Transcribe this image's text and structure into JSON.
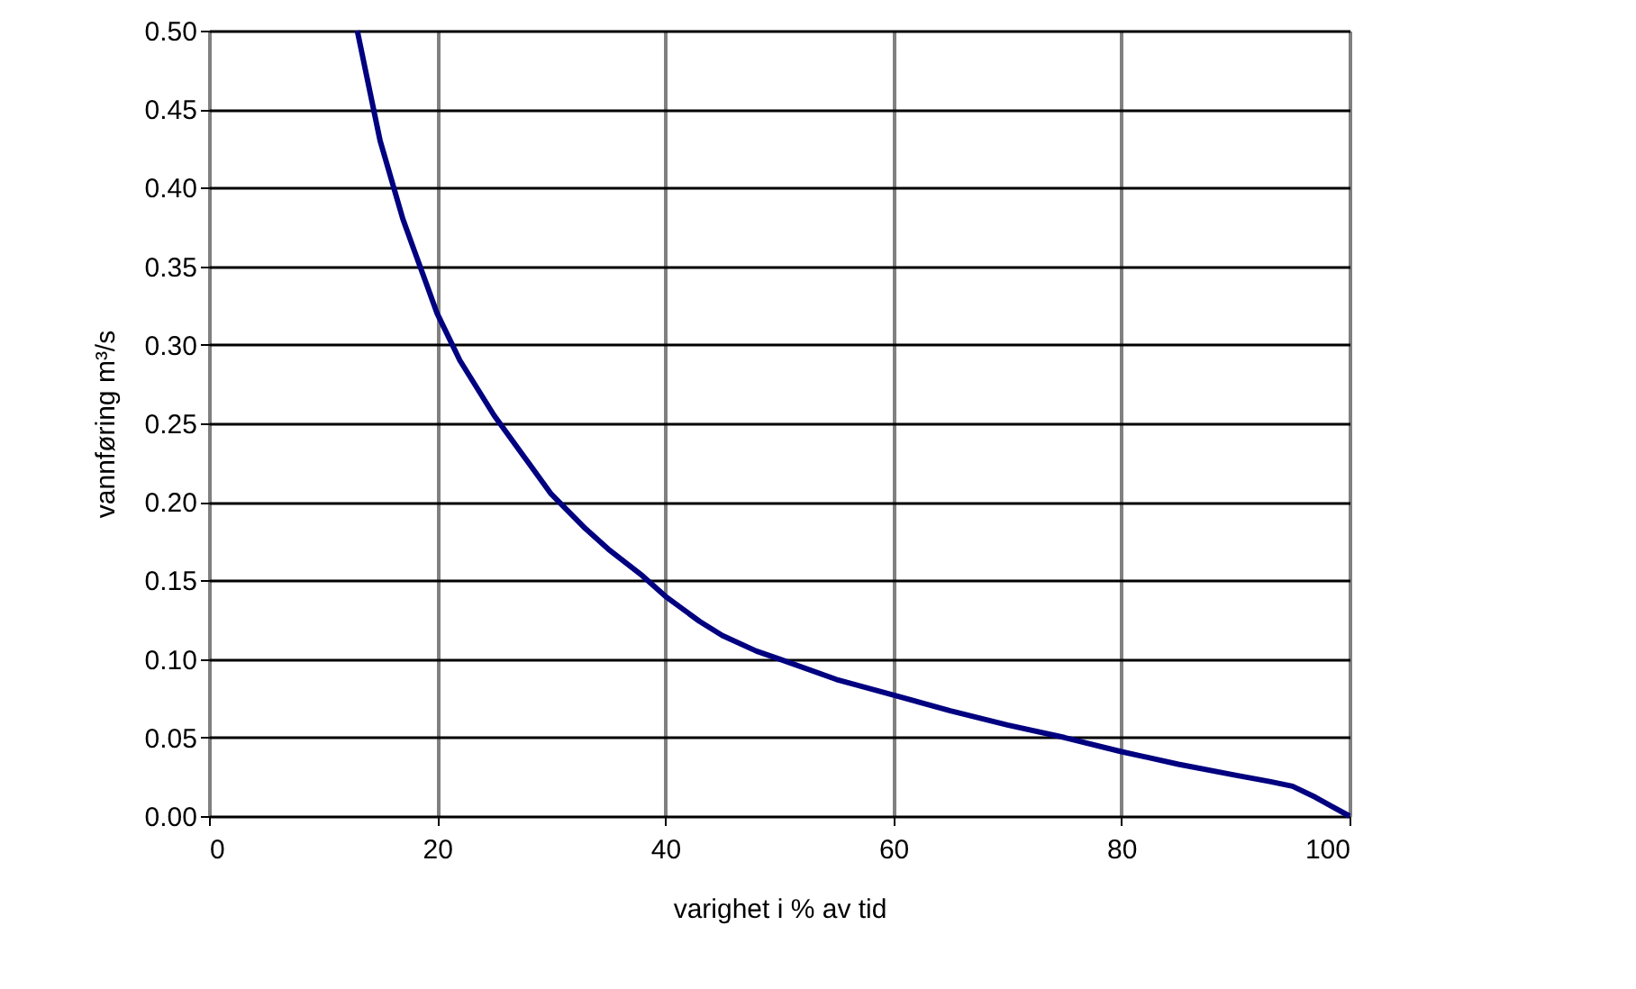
{
  "chart_data": {
    "type": "line",
    "xlabel": "varighet i % av tid",
    "ylabel": "vannføring m³/s",
    "x": [
      13,
      14,
      15,
      16,
      17,
      18,
      19,
      20,
      22,
      25,
      28,
      30,
      33,
      35,
      38,
      40,
      43,
      45,
      48,
      50,
      55,
      60,
      65,
      70,
      75,
      80,
      85,
      90,
      93,
      95,
      97,
      98.5,
      100
    ],
    "series": [
      {
        "color": "#000080",
        "values": [
          0.5,
          0.465,
          0.43,
          0.405,
          0.38,
          0.36,
          0.34,
          0.32,
          0.29,
          0.255,
          0.225,
          0.205,
          0.183,
          0.17,
          0.153,
          0.14,
          0.124,
          0.115,
          0.105,
          0.1,
          0.087,
          0.077,
          0.067,
          0.058,
          0.05,
          0.041,
          0.033,
          0.026,
          0.022,
          0.019,
          0.012,
          0.006,
          0.0
        ]
      }
    ],
    "xlim": [
      0,
      100
    ],
    "xticks": [
      0,
      20,
      40,
      60,
      80,
      100
    ],
    "ylim": [
      0,
      0.5
    ],
    "yticks": [
      {
        "value": 0,
        "label": "0.00"
      },
      0.05,
      {
        "value": 0.1,
        "label": "0.10"
      },
      0.15,
      {
        "value": 0.2,
        "label": "0.20"
      },
      0.25,
      {
        "value": 0.3,
        "label": "0.30"
      },
      0.35,
      {
        "value": 0.4,
        "label": "0.40"
      },
      0.45,
      {
        "value": 0.5,
        "label": "0.50"
      }
    ],
    "grid": true,
    "marker": "none",
    "line_style": "solid"
  }
}
